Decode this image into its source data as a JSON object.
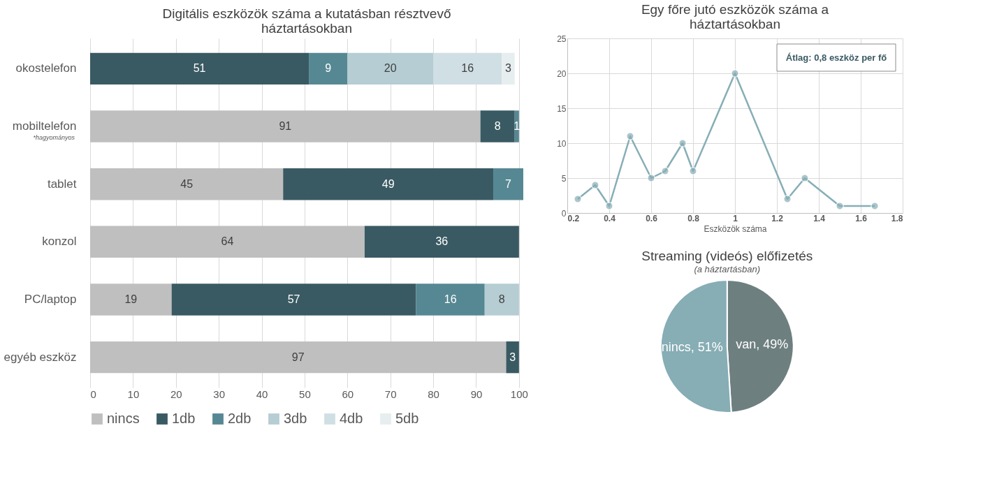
{
  "chart_data": [
    {
      "type": "bar",
      "title": "Digitális eszközök száma a kutatásban résztvevő\nháztartásokban",
      "orientation": "horizontal",
      "stacked": true,
      "categories": [
        "okostelefon",
        "mobiltelefon",
        "tablet",
        "konzol",
        "PC/laptop",
        "egyéb eszköz"
      ],
      "series": [
        {
          "name": "nincs",
          "color": "#bfbfbf",
          "values": [
            0,
            91,
            45,
            64,
            19,
            97
          ],
          "value_labels": [
            null,
            "91",
            "45",
            "64",
            "19",
            "97"
          ]
        },
        {
          "name": "1db",
          "color": "#3a5a63",
          "values": [
            51,
            8,
            49,
            36,
            57,
            3
          ],
          "value_labels": [
            "51",
            "8",
            "49",
            "36",
            "57",
            "3"
          ]
        },
        {
          "name": "2db",
          "color": "#568893",
          "values": [
            9,
            1,
            7,
            0,
            16,
            0
          ],
          "value_labels": [
            "9",
            "1",
            "7",
            null,
            "16",
            null
          ]
        },
        {
          "name": "3db",
          "color": "#b5cdd3",
          "values": [
            20,
            0,
            0,
            0,
            8,
            0
          ],
          "value_labels": [
            "20",
            null,
            null,
            null,
            "8",
            null
          ]
        },
        {
          "name": "4db",
          "color": "#d0dfe3",
          "values": [
            16,
            0,
            0,
            0,
            0,
            0
          ],
          "value_labels": [
            "16",
            null,
            null,
            null,
            null,
            null
          ]
        },
        {
          "name": "5db",
          "color": "#e6eef0",
          "values": [
            3,
            0,
            0,
            0,
            0,
            0
          ],
          "value_labels": [
            "3",
            null,
            null,
            null,
            null,
            null
          ]
        }
      ],
      "xlim": [
        0,
        101
      ],
      "xticks": [
        0,
        10,
        20,
        30,
        40,
        50,
        60,
        70,
        80,
        90,
        100
      ],
      "grid": "x",
      "legend": "bottom",
      "annotations": [
        "*hagyományos"
      ]
    },
    {
      "type": "line",
      "title": "Egy főre jutó eszközök száma a\nháztartásokban",
      "xlabel": "Eszközök száma",
      "x": [
        0.25,
        0.333,
        0.4,
        0.5,
        0.6,
        0.667,
        0.75,
        0.8,
        1,
        1.25,
        1.333,
        1.5,
        1.667
      ],
      "series": [
        {
          "color": "#87aeb6",
          "values": [
            2,
            4,
            1,
            11,
            5,
            6,
            10,
            6,
            20,
            2,
            5,
            1,
            1
          ]
        }
      ],
      "xlim": [
        0.2,
        1.8
      ],
      "xticks": [
        0.2,
        0.4,
        0.6,
        0.8,
        1,
        1.2,
        1.4,
        1.6,
        1.8
      ],
      "line_style": "solid",
      "ylim": [
        0,
        25
      ],
      "yticks": [
        0,
        5,
        10,
        15,
        20,
        25
      ],
      "grid": true,
      "marker": "circle",
      "annotations": [
        "Átlag: 0,8 eszköz per fő"
      ]
    },
    {
      "type": "pie",
      "title": "Streaming (videós) előfizetés",
      "subtitle": "(a háztartásban)",
      "categories": [
        "van",
        "nincs"
      ],
      "values": [
        49,
        51
      ],
      "colors": [
        "#6e7f7f",
        "#87adb5"
      ],
      "value_labels": [
        "49%",
        "51%"
      ]
    }
  ]
}
